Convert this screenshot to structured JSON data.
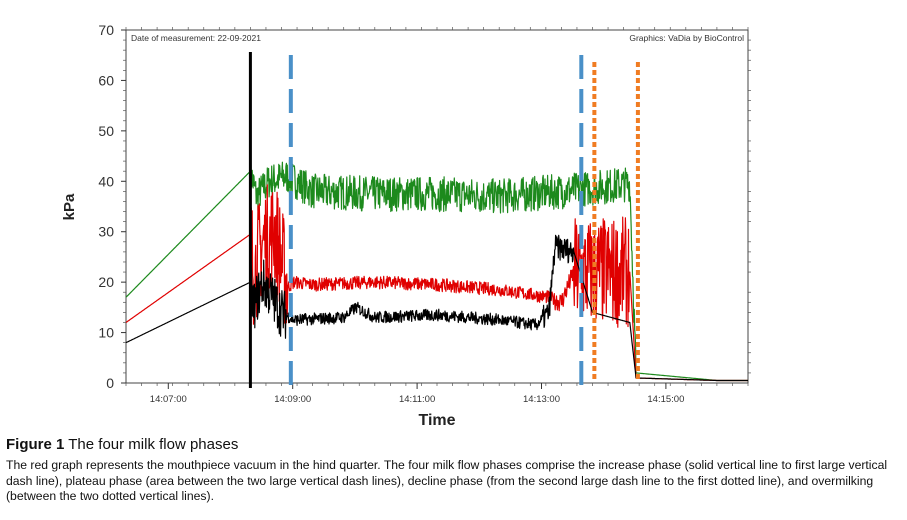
{
  "chart_data": {
    "type": "line",
    "header_left": "Date of measurement: 22-09-2021",
    "header_right": "Graphics: VaDia by BioControl",
    "xlabel": "Time",
    "ylabel": "kPa",
    "ylim": [
      0,
      70
    ],
    "xlim_minutes": [
      0,
      10
    ],
    "y_ticks": [
      "0",
      "10",
      "20",
      "30",
      "40",
      "50",
      "60",
      "70"
    ],
    "x_ticks": [
      {
        "label": "14:07:00",
        "t": 0.68
      },
      {
        "label": "14:09:00",
        "t": 2.68
      },
      {
        "label": "14:11:00",
        "t": 4.68
      },
      {
        "label": "14:13:00",
        "t": 6.68
      },
      {
        "label": "14:15:00",
        "t": 8.68
      }
    ],
    "series": [
      {
        "color": "#1d8a1d",
        "points": [
          [
            0,
            17
          ],
          [
            2.0,
            42
          ],
          [
            2.1,
            37
          ],
          [
            2.3,
            40
          ],
          [
            2.6,
            41
          ],
          [
            3.0,
            38
          ],
          [
            4.0,
            37.5
          ],
          [
            5.0,
            37.5
          ],
          [
            6.0,
            37
          ],
          [
            7.0,
            38
          ],
          [
            8.1,
            39.5
          ],
          [
            8.2,
            2
          ],
          [
            9.5,
            0.5
          ],
          [
            10,
            0.5
          ]
        ],
        "noise": [
          [
            2.0,
            8.2,
            3.5
          ]
        ]
      },
      {
        "color": "#e00000",
        "points": [
          [
            0,
            12
          ],
          [
            2.0,
            29.5
          ],
          [
            2.05,
            22
          ],
          [
            2.2,
            28
          ],
          [
            2.4,
            30
          ],
          [
            2.6,
            19
          ],
          [
            2.7,
            20
          ],
          [
            3.0,
            19.5
          ],
          [
            4.0,
            20
          ],
          [
            5.0,
            19.5
          ],
          [
            6.0,
            18.5
          ],
          [
            6.8,
            17
          ],
          [
            7.0,
            16
          ],
          [
            7.2,
            22
          ],
          [
            8.1,
            22
          ],
          [
            8.2,
            1
          ],
          [
            9.5,
            0.5
          ],
          [
            10,
            0.5
          ]
        ],
        "noise": [
          [
            2.0,
            2.6,
            11
          ],
          [
            2.6,
            6.9,
            1.3
          ],
          [
            6.9,
            7.2,
            2
          ],
          [
            7.2,
            8.1,
            11
          ]
        ]
      },
      {
        "color": "#000000",
        "points": [
          [
            0,
            8
          ],
          [
            2.0,
            20
          ],
          [
            2.05,
            15
          ],
          [
            2.2,
            20
          ],
          [
            2.5,
            14
          ],
          [
            2.7,
            12.5
          ],
          [
            3.5,
            13
          ],
          [
            3.7,
            15
          ],
          [
            4.0,
            13
          ],
          [
            5.0,
            13.5
          ],
          [
            6.0,
            12.5
          ],
          [
            6.6,
            11.5
          ],
          [
            6.8,
            14
          ],
          [
            6.9,
            27
          ],
          [
            7.2,
            26
          ],
          [
            7.5,
            14
          ],
          [
            8.1,
            12
          ],
          [
            8.2,
            1
          ],
          [
            9.5,
            0.5
          ],
          [
            10,
            0.5
          ]
        ],
        "noise": [
          [
            2.0,
            2.6,
            5
          ],
          [
            2.6,
            6.7,
            1.2
          ],
          [
            6.7,
            7.2,
            2.5
          ]
        ]
      }
    ],
    "phase_lines": [
      {
        "t": 2.0,
        "style": "solid",
        "color": "#000000"
      },
      {
        "t": 2.65,
        "style": "dash",
        "color": "#4a90c8"
      },
      {
        "t": 7.32,
        "style": "dash",
        "color": "#4a90c8"
      },
      {
        "t": 7.53,
        "style": "dot",
        "color": "#f07c22"
      },
      {
        "t": 8.23,
        "style": "dot",
        "color": "#f07c22"
      }
    ]
  },
  "caption": {
    "title_bold": "Figure 1",
    "title_rest": " The four milk flow phases",
    "text": "The red graph represents the mouthpiece vacuum in the hind quarter. The four milk flow phases comprise the increase phase (solid vertical line to first large vertical dash line), plateau phase (area between the two large vertical dash lines), decline phase (from the second large dash line to the first dotted line), and overmilking (between the two dotted vertical lines)."
  }
}
